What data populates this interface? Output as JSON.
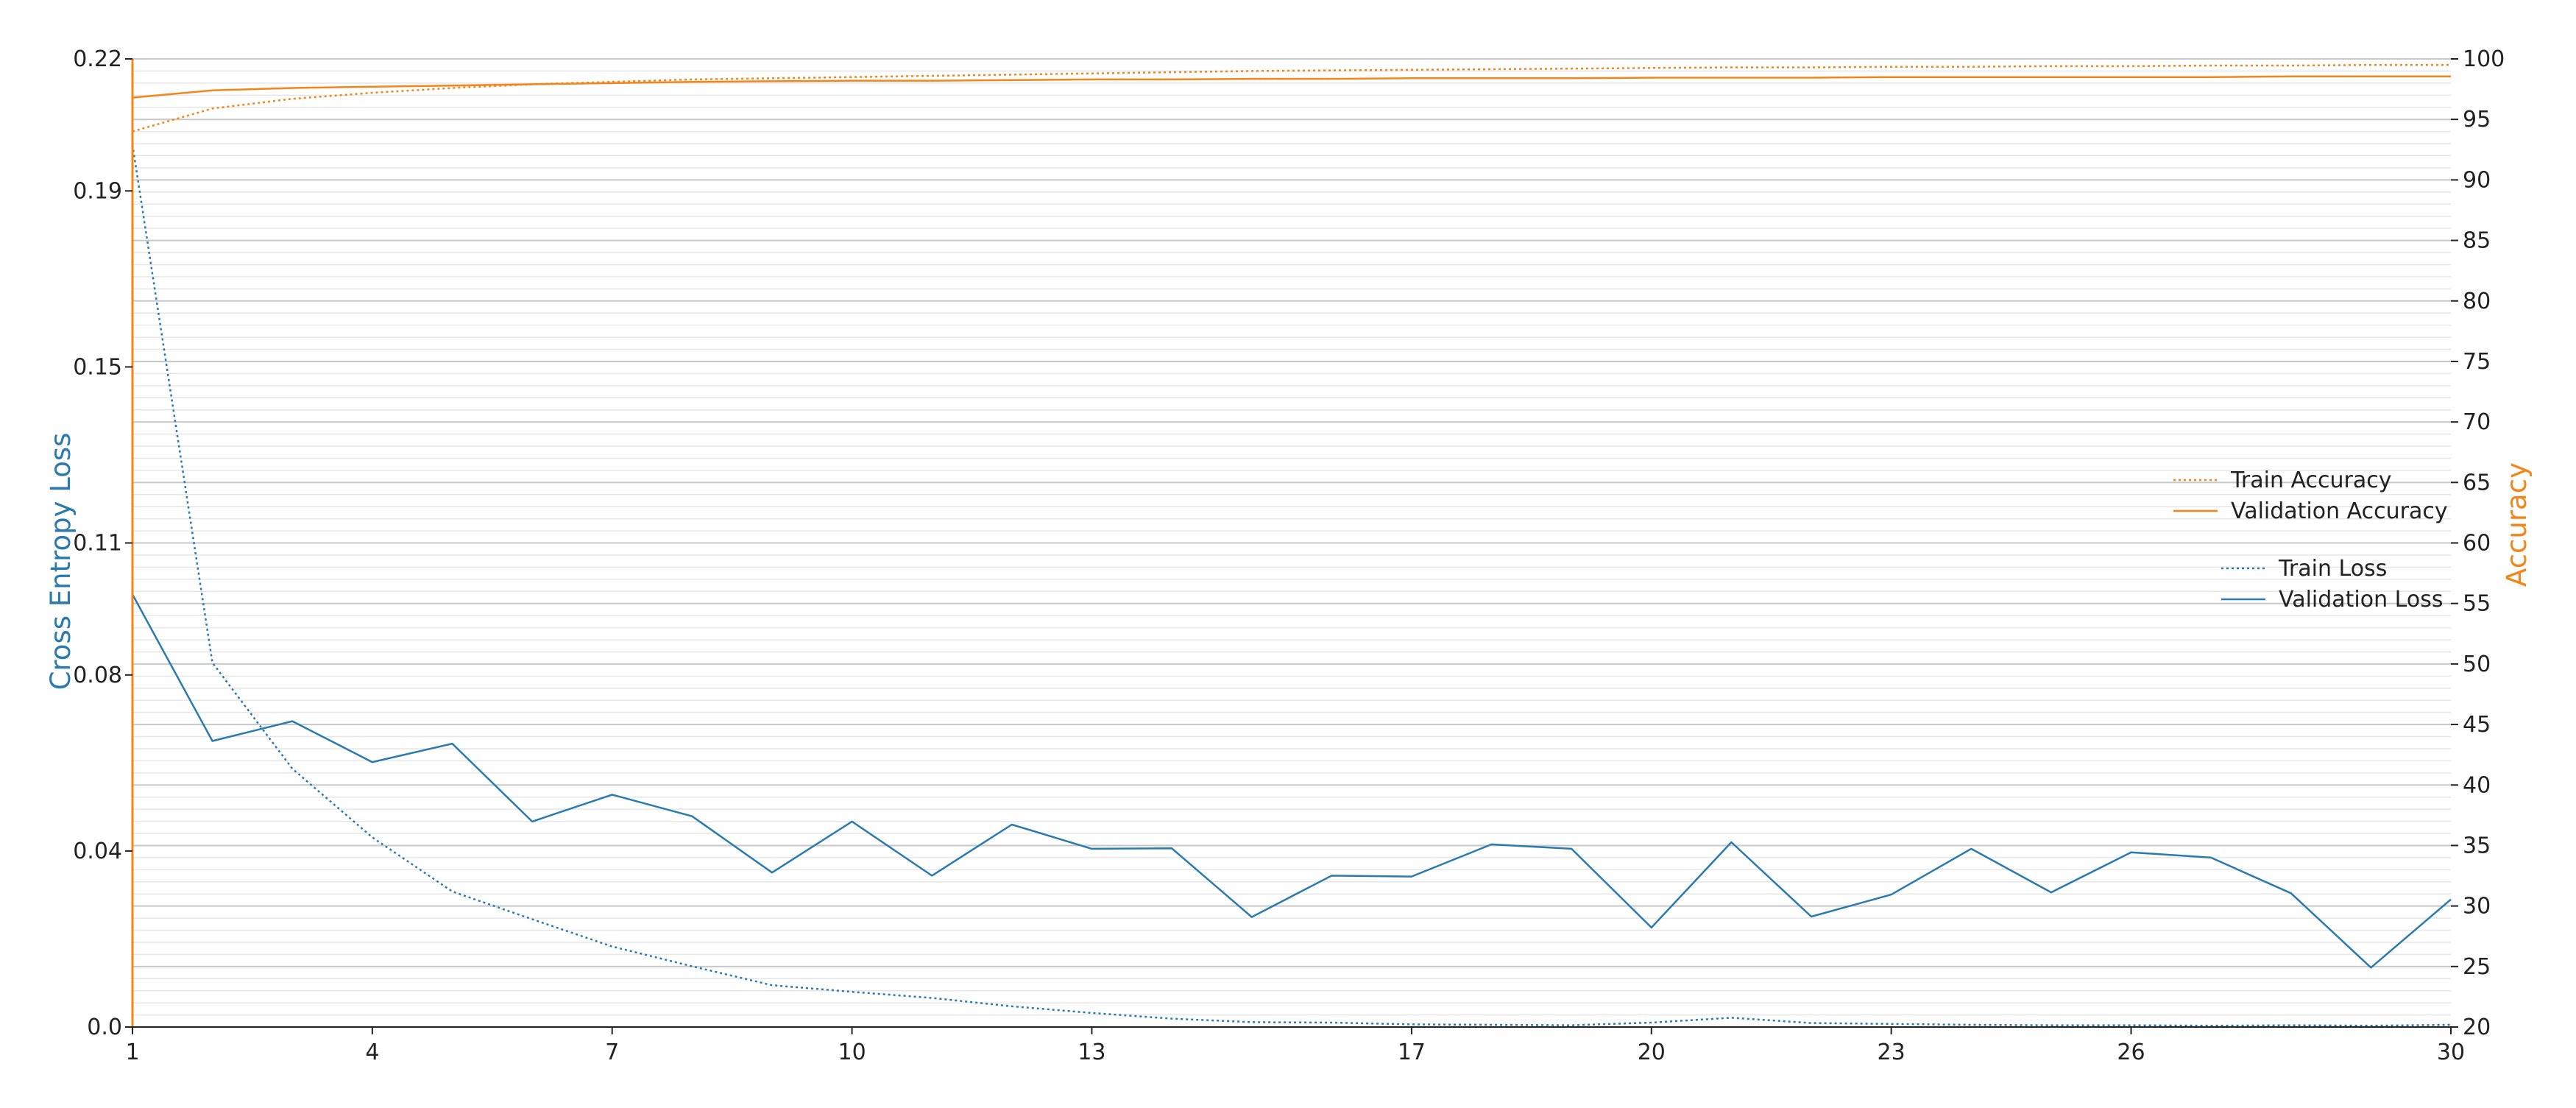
{
  "colors": {
    "loss": "#2a7ab0",
    "accuracy": "#f58518",
    "grid_major": "#c8c8c8",
    "grid_minor": "#e6e6e6",
    "axis": "#222222"
  },
  "chart_data": {
    "type": "line",
    "x": [
      1,
      2,
      3,
      4,
      5,
      6,
      7,
      8,
      9,
      10,
      11,
      12,
      13,
      14,
      15,
      16,
      17,
      18,
      19,
      20,
      21,
      22,
      23,
      24,
      25,
      26,
      27,
      28,
      29,
      30
    ],
    "xticks": [
      1,
      4,
      7,
      10,
      13,
      17,
      20,
      23,
      26,
      30
    ],
    "xtick_labels": [
      "1",
      "4",
      "7",
      "10",
      "13",
      "17",
      "20",
      "23",
      "26",
      "30"
    ],
    "xlim": [
      1,
      30
    ],
    "left_axis": {
      "label": "Cross Entropy Loss",
      "ylim": [
        0.0,
        0.22
      ],
      "ticks": [
        0.0,
        0.04,
        0.08,
        0.11,
        0.15,
        0.19,
        0.22
      ],
      "tick_labels": [
        "0.0",
        "0.04",
        "0.08",
        "0.11",
        "0.15",
        "0.19",
        "0.22"
      ],
      "color": "#2a7ab0"
    },
    "right_axis": {
      "label": "Accuracy",
      "ylim": [
        20,
        100
      ],
      "ticks": [
        20,
        25,
        30,
        35,
        40,
        45,
        50,
        55,
        60,
        65,
        70,
        75,
        80,
        85,
        90,
        95,
        100
      ],
      "tick_labels": [
        "20",
        "25",
        "30",
        "35",
        "40",
        "45",
        "50",
        "55",
        "60",
        "65",
        "70",
        "75",
        "80",
        "85",
        "90",
        "95",
        "100"
      ],
      "color": "#f58518"
    },
    "grid": true,
    "series": [
      {
        "name": "Train Loss",
        "axis": "left",
        "style": "dotted",
        "values": [
          0.2005,
          0.0828,
          0.0587,
          0.0431,
          0.0308,
          0.0245,
          0.0183,
          0.0138,
          0.0095,
          0.008,
          0.0066,
          0.0047,
          0.0032,
          0.0019,
          0.0011,
          0.001,
          0.0006,
          0.0005,
          0.0004,
          0.001,
          0.0021,
          0.0009,
          0.0007,
          0.0005,
          0.0004,
          0.0004,
          0.0003,
          0.0004,
          0.0003,
          0.0005
        ]
      },
      {
        "name": "Validation Loss",
        "axis": "left",
        "style": "solid",
        "values": [
          0.0983,
          0.065,
          0.0695,
          0.0602,
          0.0644,
          0.0467,
          0.0528,
          0.0479,
          0.0351,
          0.0467,
          0.0344,
          0.046,
          0.0405,
          0.0406,
          0.025,
          0.0344,
          0.0342,
          0.0415,
          0.0405,
          0.0226,
          0.042,
          0.0251,
          0.0301,
          0.0405,
          0.0306,
          0.0397,
          0.0385,
          0.0304,
          0.0135,
          0.029
        ]
      },
      {
        "name": "Train Accuracy",
        "axis": "right",
        "style": "dotted",
        "values": [
          94.0,
          95.9,
          96.7,
          97.2,
          97.6,
          97.9,
          98.1,
          98.3,
          98.4,
          98.5,
          98.6,
          98.7,
          98.8,
          98.9,
          99.0,
          99.05,
          99.1,
          99.15,
          99.2,
          99.25,
          99.3,
          99.3,
          99.35,
          99.35,
          99.4,
          99.4,
          99.45,
          99.45,
          99.5,
          99.5
        ]
      },
      {
        "name": "Validation Accuracy",
        "axis": "right",
        "style": "solid",
        "values": [
          96.8,
          97.4,
          97.6,
          97.7,
          97.8,
          97.9,
          98.0,
          98.1,
          98.15,
          98.2,
          98.2,
          98.25,
          98.3,
          98.3,
          98.35,
          98.35,
          98.4,
          98.4,
          98.4,
          98.45,
          98.45,
          98.45,
          98.5,
          98.5,
          98.5,
          98.5,
          98.5,
          98.55,
          98.55,
          98.55
        ]
      }
    ],
    "legend": {
      "placement": "right",
      "accuracy_entries": [
        "Train Accuracy",
        "Validation Accuracy"
      ],
      "loss_entries": [
        "Train Loss",
        "Validation Loss"
      ]
    }
  }
}
